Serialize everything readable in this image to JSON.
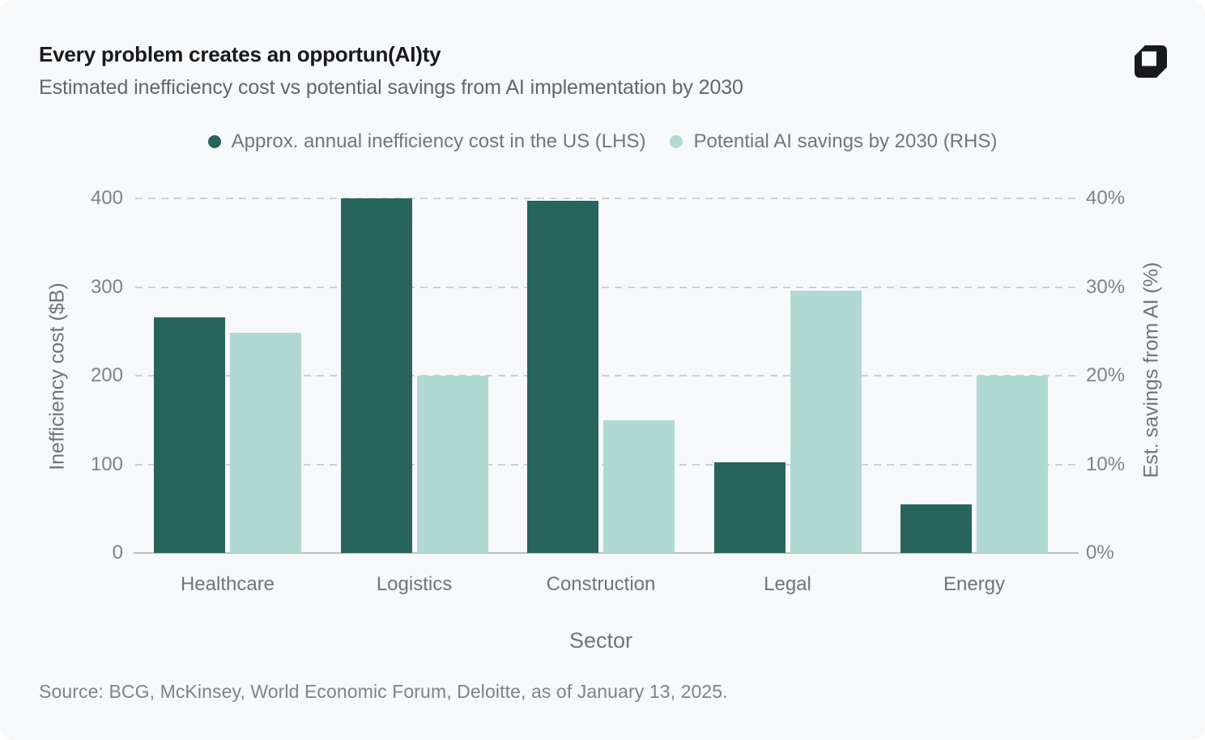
{
  "header": {
    "title": "Every problem creates an opportun(AI)ty",
    "subtitle": "Estimated inefficiency cost vs potential savings from AI implementation by 2030",
    "logo_name": "quartr-logo",
    "logo_color": "#17191d"
  },
  "legend": {
    "position": "top-center",
    "items": [
      {
        "label": "Approx. annual inefficiency cost in the US (LHS)",
        "color": "#27645e"
      },
      {
        "label": "Potential AI savings by 2030 (RHS)",
        "color": "#b0d9d4"
      }
    ]
  },
  "chart_data": {
    "type": "bar",
    "categories": [
      "Healthcare",
      "Logistics",
      "Construction",
      "Legal",
      "Energy"
    ],
    "series": [
      {
        "name": "Approx. annual inefficiency cost in the US (LHS)",
        "key": "inefficiency-cost",
        "axis": "left",
        "unit": "$B",
        "color": "#27645e",
        "values": [
          266,
          400,
          397,
          102,
          55
        ]
      },
      {
        "name": "Potential AI savings by 2030 (RHS)",
        "key": "ai-savings",
        "axis": "right",
        "unit": "%",
        "color": "#b0d9d4",
        "values": [
          24.8,
          20,
          15,
          29.6,
          20
        ]
      }
    ],
    "left_axis": {
      "label": "Inefficiency cost ($B)",
      "range": [
        0,
        400
      ],
      "ticks": [
        0,
        100,
        200,
        300,
        400
      ],
      "tick_labels": [
        "0",
        "100",
        "200",
        "300",
        "400"
      ]
    },
    "right_axis": {
      "label": "Est. savings from AI (%)",
      "range": [
        0,
        40
      ],
      "ticks": [
        0,
        10,
        20,
        30,
        40
      ],
      "tick_labels": [
        "0%",
        "10%",
        "20%",
        "30%",
        "40%"
      ]
    },
    "x_axis": {
      "label": "Sector"
    },
    "grid": {
      "horizontal": true,
      "style": "dashed",
      "color": "#cbd1d8"
    },
    "baseline_color": "#b9bfc6",
    "background": "#f7f8fa"
  },
  "footer": {
    "source": "Source: BCG, McKinsey, World Economic Forum, Deloitte, as of January 13, 2025."
  }
}
